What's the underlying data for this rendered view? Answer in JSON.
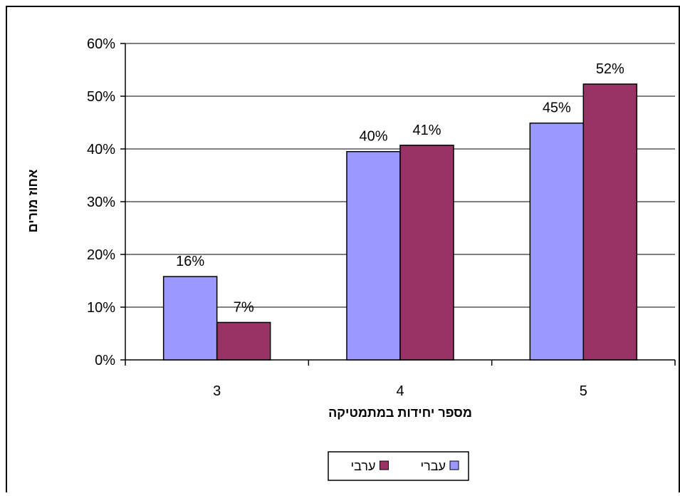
{
  "chart_data": {
    "type": "bar",
    "title": "",
    "xlabel": "מספר יחידות במתמטיקה",
    "ylabel": "אחוז מורים",
    "categories": [
      "3",
      "4",
      "5"
    ],
    "series": [
      {
        "name": "עברי",
        "values": [
          0.158,
          0.395,
          0.449
        ],
        "labels": [
          "16%",
          "40%",
          "45%"
        ],
        "color": "#9999ff"
      },
      {
        "name": "ערבי",
        "values": [
          0.071,
          0.407,
          0.523
        ],
        "labels": [
          "7%",
          "41%",
          "52%"
        ],
        "color": "#993366"
      }
    ],
    "ylim": [
      0,
      0.6
    ],
    "yticks": [
      0,
      0.1,
      0.2,
      0.3,
      0.4,
      0.5,
      0.6
    ],
    "ytick_labels": [
      "0%",
      "10%",
      "20%",
      "30%",
      "40%",
      "50%",
      "60%"
    ],
    "grid": true,
    "legend_position": "bottom"
  }
}
